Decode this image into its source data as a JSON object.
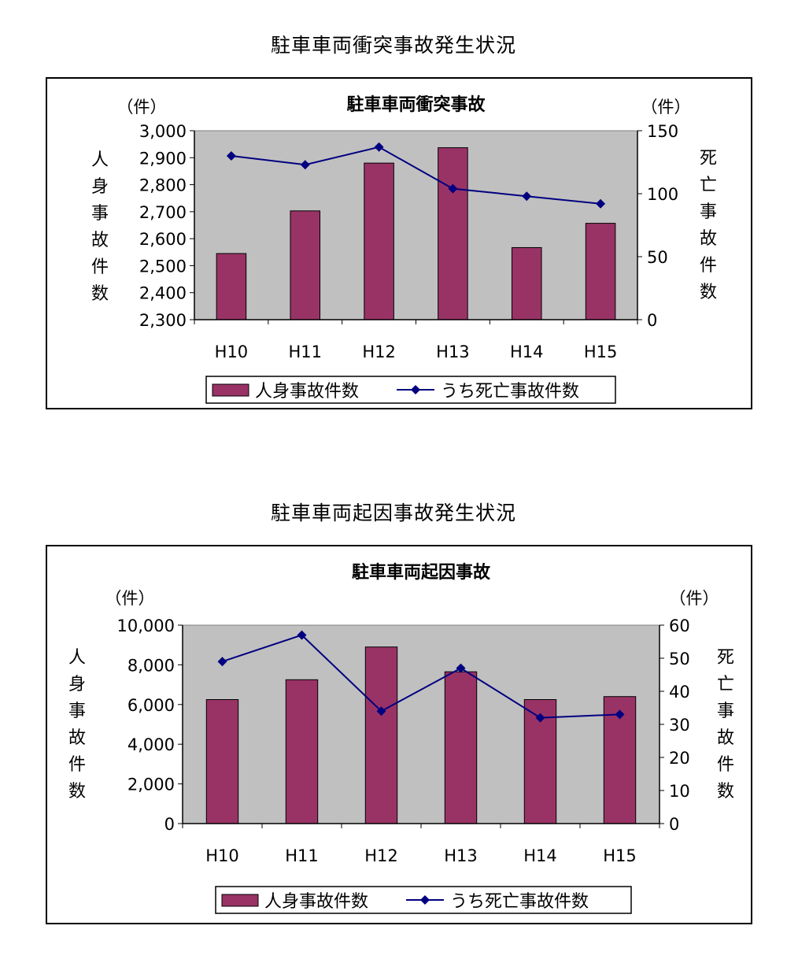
{
  "page_titles": [
    "駐車車両衝突事故発生状況",
    "駐車車両起因事故発生状況"
  ],
  "colors": {
    "bar": "#993366",
    "line": "#000080",
    "plot_bg": "#c0c0c0"
  },
  "chart_data": [
    {
      "type": "bar",
      "title": "駐車車両衝突事故",
      "categories": [
        "H10",
        "H11",
        "H12",
        "H13",
        "H14",
        "H15"
      ],
      "series": [
        {
          "name": "人身事故件数",
          "type": "bar",
          "axis": "left",
          "values": [
            2545,
            2703,
            2880,
            2937,
            2567,
            2657
          ]
        },
        {
          "name": "うち死亡事故件数",
          "type": "line",
          "axis": "right",
          "values": [
            130,
            123,
            137,
            104,
            98,
            92
          ]
        }
      ],
      "left_axis": {
        "label": "人身事故件数",
        "unit": "（件）",
        "min": 2300,
        "max": 3000,
        "step": 100,
        "ticks": [
          "2,300",
          "2,400",
          "2,500",
          "2,600",
          "2,700",
          "2,800",
          "2,900",
          "3,000"
        ]
      },
      "right_axis": {
        "label": "死亡事故件数",
        "unit": "（件）",
        "min": 0,
        "max": 150,
        "step": 50,
        "ticks": [
          "0",
          "50",
          "100",
          "150"
        ]
      },
      "legend": [
        "人身事故件数",
        "うち死亡事故件数"
      ],
      "legend_position": "bottom",
      "grid": false
    },
    {
      "type": "bar",
      "title": "駐車車両起因事故",
      "categories": [
        "H10",
        "H11",
        "H12",
        "H13",
        "H14",
        "H15"
      ],
      "series": [
        {
          "name": "人身事故件数",
          "type": "bar",
          "axis": "left",
          "values": [
            6250,
            7250,
            8900,
            7650,
            6250,
            6400
          ]
        },
        {
          "name": "うち死亡事故件数",
          "type": "line",
          "axis": "right",
          "values": [
            49,
            57,
            34,
            47,
            32,
            33
          ]
        }
      ],
      "left_axis": {
        "label": "人身事故件数",
        "unit": "（件）",
        "min": 0,
        "max": 10000,
        "step": 2000,
        "ticks": [
          "0",
          "2,000",
          "4,000",
          "6,000",
          "8,000",
          "10,000"
        ]
      },
      "right_axis": {
        "label": "死亡事故件数",
        "unit": "（件）",
        "min": 0,
        "max": 60,
        "step": 10,
        "ticks": [
          "0",
          "10",
          "20",
          "30",
          "40",
          "50",
          "60"
        ]
      },
      "legend": [
        "人身事故件数",
        "うち死亡事故件数"
      ],
      "legend_position": "bottom",
      "grid": false
    }
  ]
}
